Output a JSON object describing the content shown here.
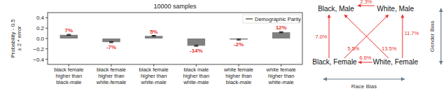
{
  "chart_data": {
    "type": "bar",
    "title": "10000 samples",
    "y_label": "Probability - 0.5\n± 2 * error",
    "categories": [
      "black female\nhigher than\nblack-male",
      "black female\nhigher than\nwhite-female",
      "black female\nhigher than\nwhite-male",
      "black male\nhigher than\nwhite-male",
      "white female\nhigher than\nblack-male",
      "white female\nhigher than\nwhite-male"
    ],
    "series": [
      {
        "name": "Demographic Parity",
        "color": "#808080",
        "values": [
          0.07,
          -0.07,
          0.05,
          -0.14,
          -0.02,
          0.12
        ],
        "error": [
          0.01,
          0.01,
          0.01,
          0.01,
          0.01,
          0.01
        ],
        "value_labels": [
          "7%",
          "-7%",
          "5%",
          "-14%",
          "-2%",
          "12%"
        ]
      }
    ],
    "ylim": [
      -0.5,
      0.5
    ],
    "yticks": [
      {
        "value": -0.4,
        "label": "−0.4"
      },
      {
        "value": -0.2,
        "label": "−0.2"
      },
      {
        "value": 0,
        "label": "0.0"
      },
      0.2,
      0.4
    ],
    "data_labels": true,
    "legend": "upper right",
    "grid": false
  },
  "diagram": {
    "nodes": [
      {
        "label": "Black, Male"
      },
      {
        "label": "White, Male"
      },
      {
        "label": "Black, Female"
      },
      {
        "label": "White, Female"
      }
    ],
    "edges": [
      {
        "from": 1,
        "to": 0,
        "label": "2.3%"
      },
      {
        "from": 2,
        "to": 0,
        "label": "7.0%"
      },
      {
        "from": 3,
        "to": 1,
        "label": "11.7%"
      },
      {
        "from": 2,
        "to": 1,
        "label": "5.5%"
      },
      {
        "from": 3,
        "to": 0,
        "label": "13.5%"
      },
      {
        "from": 3,
        "to": 2,
        "label": "6.6%"
      }
    ],
    "axes": [
      {
        "label": "Gender Bias"
      },
      {
        "label": "Race Bias"
      }
    ]
  }
}
